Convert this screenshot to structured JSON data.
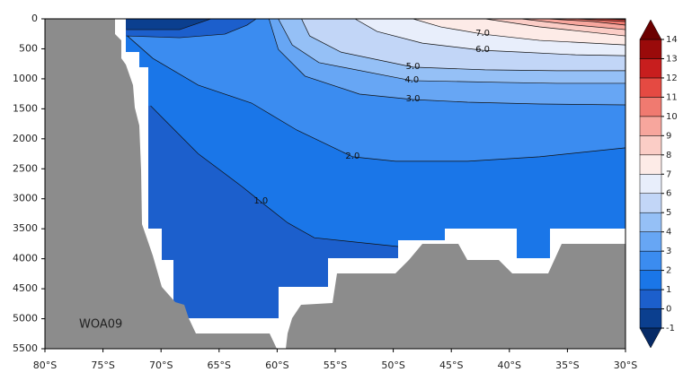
{
  "chart_data": {
    "type": "contour",
    "annotation": "WOA09",
    "xlim": [
      -80,
      -30
    ],
    "ylim": [
      5500,
      0
    ],
    "xticks": [
      {
        "value": -80,
        "label": "80°S"
      },
      {
        "value": -75,
        "label": "75°S"
      },
      {
        "value": -70,
        "label": "70°S"
      },
      {
        "value": -65,
        "label": "65°S"
      },
      {
        "value": -60,
        "label": "60°S"
      },
      {
        "value": -55,
        "label": "55°S"
      },
      {
        "value": -50,
        "label": "50°S"
      },
      {
        "value": -45,
        "label": "45°S"
      },
      {
        "value": -40,
        "label": "40°S"
      },
      {
        "value": -35,
        "label": "35°S"
      },
      {
        "value": -30,
        "label": "30°S"
      }
    ],
    "yticks": [
      0,
      500,
      1000,
      1500,
      2000,
      2500,
      3000,
      3500,
      4000,
      4500,
      5000,
      5500
    ],
    "colorbar": {
      "ticks": [
        -1,
        0,
        1,
        2,
        3,
        4,
        5,
        6,
        7,
        8,
        9,
        10,
        11,
        12,
        13,
        14
      ],
      "colors": [
        "#0b3f8f",
        "#1c5fcc",
        "#1a76e8",
        "#3b8cf0",
        "#67a6f4",
        "#95c0f6",
        "#c2d6f7",
        "#e8eefb",
        "#fdebe7",
        "#fbcdc6",
        "#f7a69d",
        "#f07a70",
        "#e54a42",
        "#c81e1e",
        "#9a0a0a"
      ],
      "under": "#062a66",
      "over": "#6b0000"
    },
    "contours": [
      {
        "level": 2,
        "label": "2.0",
        "close": "top-right",
        "x": [
          -72.9,
          -70.7,
          -66.8,
          -62.2,
          -58.3,
          -53.5,
          -49.8,
          -43.6,
          -37.4,
          -30
        ],
        "y": [
          285,
          660,
          1105,
          1405,
          1855,
          2300,
          2375,
          2375,
          2300,
          2150
        ]
      },
      {
        "level": 3,
        "label": "3.0",
        "close": "top-right",
        "x": [
          -60.7,
          -59.9,
          -57.6,
          -52.9,
          -48.3,
          -43.6,
          -37.4,
          -30
        ],
        "y": [
          0,
          510,
          955,
          1255,
          1345,
          1390,
          1420,
          1435
        ]
      },
      {
        "level": 4,
        "label": "4.0",
        "close": "top-right",
        "x": [
          -59.9,
          -58.7,
          -56.4,
          -48.4,
          -40.5,
          -35.9,
          -30
        ],
        "y": [
          0,
          435,
          730,
          1030,
          1060,
          1075,
          1075
        ]
      },
      {
        "level": 5,
        "label": "5.0",
        "close": "top-right",
        "x": [
          -57.9,
          -57.2,
          -54.5,
          -48.3,
          -42.1,
          -35.9,
          -30
        ],
        "y": [
          0,
          285,
          555,
          805,
          850,
          865,
          865
        ]
      },
      {
        "level": 6,
        "label": "6.0",
        "close": "top-right",
        "x": [
          -53.3,
          -51.4,
          -47.5,
          -42.3,
          -39.0,
          -34.3,
          -30
        ],
        "y": [
          0,
          210,
          405,
          525,
          555,
          600,
          615
        ]
      },
      {
        "level": 7,
        "label": "7.0",
        "close": "top-right",
        "x": [
          -48.3,
          -45.9,
          -42.3,
          -37.4,
          -30
        ],
        "y": [
          0,
          135,
          255,
          360,
          435
        ]
      },
      {
        "level": 8,
        "close": "top-right",
        "x": [
          -42.1,
          -37.4,
          -30
        ],
        "y": [
          0,
          135,
          285
        ]
      },
      {
        "level": 9,
        "close": "top-right",
        "x": [
          -39.0,
          -34.3,
          -30
        ],
        "y": [
          0,
          105,
          180
        ]
      },
      {
        "level": 10,
        "close": "top-right",
        "x": [
          -36.7,
          -32.8,
          -30
        ],
        "y": [
          0,
          45,
          105
        ]
      },
      {
        "level": 11,
        "close": "top-right",
        "x": [
          -34.3,
          -30
        ],
        "y": [
          0,
          45
        ]
      },
      {
        "level": 12,
        "close": "top-right",
        "x": [
          -32.0,
          -30
        ],
        "y": [
          0,
          15
        ]
      },
      {
        "level": 1,
        "label": "1.0",
        "close": "bottom-left",
        "x": [
          -70.9,
          -66.8,
          -63.0,
          -61.4,
          -59.1,
          -56.8,
          -49.4
        ],
        "y": [
          1450,
          2250,
          2800,
          3050,
          3400,
          3650,
          3800
        ]
      },
      {
        "level": 1,
        "close": "top-left",
        "x": [
          -73.0,
          -68.4,
          -64.5,
          -62.6,
          -61.8
        ],
        "y": [
          285,
          315,
          255,
          105,
          0
        ]
      },
      {
        "level": 0,
        "close": "top-left",
        "x": [
          -73.0,
          -68.4,
          -65.7
        ],
        "y": [
          180,
          180,
          0
        ]
      }
    ]
  }
}
